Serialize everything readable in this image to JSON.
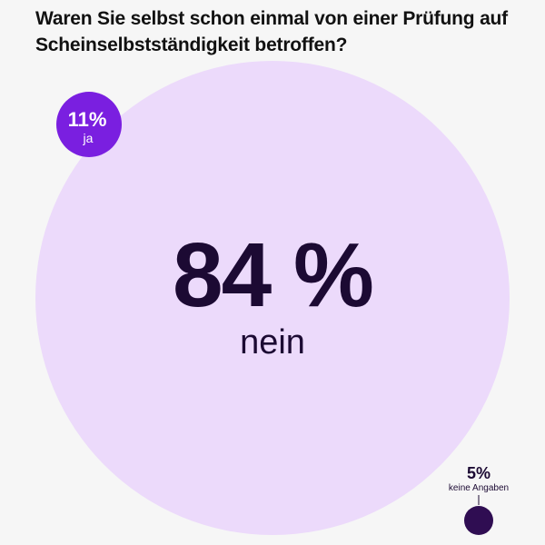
{
  "title": "Waren Sie selbst schon einmal von einer Prüfung auf Scheinselbstständigkeit betroffen?",
  "colors": {
    "background": "#f6f6f6",
    "nein": "#ecdafb",
    "ja": "#7a1fe0",
    "keine_angaben": "#2f0d52",
    "text_dark": "#1c0a33",
    "text_light": "#ffffff"
  },
  "chart_data": {
    "type": "bubble",
    "title": "Waren Sie selbst schon einmal von einer Prüfung auf Scheinselbstständigkeit betroffen?",
    "categories": [
      "nein",
      "ja",
      "keine Angaben"
    ],
    "values": [
      84,
      11,
      5
    ],
    "unit": "%",
    "labels": [
      {
        "value": "84 %",
        "label": "nein"
      },
      {
        "value": "11%",
        "label": "ja"
      },
      {
        "value": "5%",
        "label": "keine Angaben"
      }
    ]
  }
}
